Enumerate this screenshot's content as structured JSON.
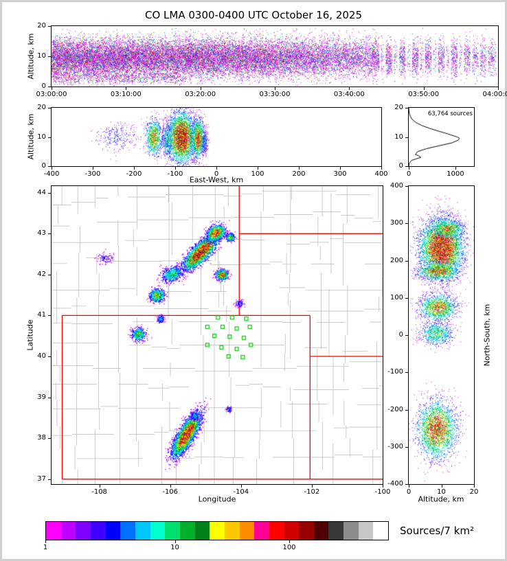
{
  "title": "CO LMA 0300-0400 UTC October 16, 2025",
  "panels": {
    "time_height": {
      "ylabel": "Altitude, km",
      "yticks": [
        0,
        10,
        20
      ],
      "xticks": [
        {
          "v": 0,
          "label": "03:00:00"
        },
        {
          "v": 600,
          "label": "03:10:00"
        },
        {
          "v": 1200,
          "label": "03:20:00"
        },
        {
          "v": 1800,
          "label": "03:30:00"
        },
        {
          "v": 2400,
          "label": "03:40:00"
        },
        {
          "v": 3000,
          "label": "03:50:00"
        },
        {
          "v": 3600,
          "label": "04:00:00"
        }
      ],
      "xrange": [
        0,
        3600
      ],
      "yrange": [
        0,
        20
      ]
    },
    "ew_height": {
      "xlabel": "East-West, km",
      "ylabel": "Altitude, km",
      "xticks": [
        -400,
        -300,
        -200,
        -100,
        0,
        100,
        200,
        300,
        400
      ],
      "yticks": [
        0,
        10,
        20
      ],
      "xrange": [
        -400,
        400
      ],
      "yrange": [
        0,
        20
      ]
    },
    "histogram": {
      "annotation": "63,764 sources",
      "xticks": [
        0,
        1000
      ],
      "yticks": [
        0,
        10,
        20
      ],
      "xrange": [
        0,
        1400
      ],
      "yrange": [
        0,
        20
      ]
    },
    "plan_view": {
      "xlabel": "Longitude",
      "ylabel": "Latitude",
      "xticks": [
        -108,
        -106,
        -104,
        -102,
        -100
      ],
      "yticks": [
        37,
        38,
        39,
        40,
        41,
        42,
        43,
        44
      ],
      "xrange": [
        -109.35,
        -100.0
      ],
      "yrange": [
        36.88,
        44.16
      ]
    },
    "ns_height": {
      "xlabel": "Altitude, km",
      "ylabel": "North-South, km",
      "xticks": [
        0,
        10,
        20
      ],
      "yticks": [
        -400,
        -300,
        -200,
        -100,
        0,
        100,
        200,
        300,
        400
      ],
      "xrange": [
        0,
        20
      ],
      "yrange": [
        -400,
        400
      ]
    },
    "colorbar": {
      "label": "Sources/7 km²",
      "ticks": [
        {
          "pos": 0.0,
          "label": "1"
        },
        {
          "pos": 0.377,
          "label": "10"
        },
        {
          "pos": 0.71,
          "label": "100"
        }
      ],
      "colors": [
        "#ff00ff",
        "#c000ff",
        "#8000ff",
        "#4000ff",
        "#0000ff",
        "#0070ff",
        "#00c8ff",
        "#00ffd0",
        "#00e070",
        "#00b028",
        "#008018",
        "#ffff00",
        "#ffc800",
        "#ff8c00",
        "#ff0096",
        "#ff0000",
        "#d00000",
        "#960000",
        "#500000",
        "#383838",
        "#8c8c8c",
        "#c8c8c8",
        "#ffffff"
      ]
    }
  },
  "chart_data": {
    "type": "scatter",
    "title": "CO LMA 0300-0400 UTC October 16, 2025",
    "total_sources": 63764,
    "colormap_label": "Sources/7 km²",
    "time_height": {
      "xlim": [
        0,
        3600
      ],
      "ylim": [
        0,
        20
      ],
      "alt_mean": 9.5,
      "alt_sd": 3.2,
      "low_alt": 3.0,
      "points_scale": 38000,
      "segments": [
        [
          0.0,
          0.08,
          1.0
        ],
        [
          0.08,
          0.16,
          1.0
        ],
        [
          0.16,
          0.24,
          0.95
        ],
        [
          0.24,
          0.32,
          0.9
        ],
        [
          0.32,
          0.4,
          0.85
        ],
        [
          0.4,
          0.47,
          0.8
        ],
        [
          0.47,
          0.55,
          0.7
        ],
        [
          0.55,
          0.62,
          0.6
        ],
        [
          0.62,
          0.68,
          0.5
        ],
        [
          0.68,
          0.72,
          0.45
        ],
        [
          0.72,
          0.733,
          0.55
        ],
        [
          0.737,
          0.744,
          0.2
        ],
        [
          0.748,
          0.762,
          0.5
        ],
        [
          0.766,
          0.773,
          0.18
        ],
        [
          0.778,
          0.792,
          0.45
        ],
        [
          0.796,
          0.803,
          0.15
        ],
        [
          0.807,
          0.821,
          0.5
        ],
        [
          0.825,
          0.832,
          0.2
        ],
        [
          0.836,
          0.85,
          0.45
        ],
        [
          0.854,
          0.861,
          0.15
        ],
        [
          0.865,
          0.879,
          0.4
        ],
        [
          0.883,
          0.89,
          0.15
        ],
        [
          0.894,
          0.908,
          0.45
        ],
        [
          0.912,
          0.919,
          0.15
        ],
        [
          0.923,
          0.937,
          0.35
        ],
        [
          0.941,
          0.955,
          0.25
        ],
        [
          0.959,
          0.973,
          0.3
        ],
        [
          0.977,
          0.995,
          0.25
        ]
      ]
    },
    "ew_height": {
      "xlim": [
        -400,
        400
      ],
      "ylim": [
        0,
        20
      ],
      "clusters": [
        {
          "cx": -240,
          "cy": 10,
          "sx": 28,
          "sy": 2.6,
          "rot": 0,
          "count": 260,
          "core": 0.28
        },
        {
          "cx": -152,
          "cy": 10,
          "sx": 10,
          "sy": 3.1,
          "rot": 0,
          "count": 850,
          "core": 0.78
        },
        {
          "cx": -120,
          "cy": 9,
          "sx": 7,
          "sy": 3.0,
          "rot": 0,
          "count": 420,
          "core": 0.55
        },
        {
          "cx": -85,
          "cy": 10,
          "sx": 16,
          "sy": 4.2,
          "rot": 0,
          "count": 3400,
          "core": 1.0
        },
        {
          "cx": -45,
          "cy": 9.5,
          "sx": 8,
          "sy": 3.4,
          "rot": 0,
          "count": 1200,
          "core": 0.85
        },
        {
          "cx": -28,
          "cy": 8,
          "sx": 4,
          "sy": 2.2,
          "rot": 0,
          "count": 180,
          "core": 0.35
        }
      ]
    },
    "plan_view": {
      "xlim": [
        -109.35,
        -100.0
      ],
      "ylim": [
        36.88,
        44.16
      ],
      "clusters": [
        {
          "cx": -105.15,
          "cy": 42.55,
          "sx": 0.3,
          "sy": 0.1,
          "rot": 40,
          "count": 2600,
          "core": 1.0
        },
        {
          "cx": -104.72,
          "cy": 43.02,
          "sx": 0.13,
          "sy": 0.09,
          "rot": 25,
          "count": 900,
          "core": 0.92
        },
        {
          "cx": -104.32,
          "cy": 42.92,
          "sx": 0.06,
          "sy": 0.05,
          "rot": 0,
          "count": 260,
          "core": 0.65
        },
        {
          "cx": -105.95,
          "cy": 42.02,
          "sx": 0.16,
          "sy": 0.09,
          "rot": 15,
          "count": 480,
          "core": 0.55
        },
        {
          "cx": -104.55,
          "cy": 42.0,
          "sx": 0.08,
          "sy": 0.06,
          "rot": 0,
          "count": 520,
          "core": 0.88
        },
        {
          "cx": -106.38,
          "cy": 41.5,
          "sx": 0.1,
          "sy": 0.08,
          "rot": 0,
          "count": 460,
          "core": 0.72
        },
        {
          "cx": -106.9,
          "cy": 40.55,
          "sx": 0.1,
          "sy": 0.08,
          "rot": 0,
          "count": 360,
          "core": 0.62
        },
        {
          "cx": -106.28,
          "cy": 40.92,
          "sx": 0.05,
          "sy": 0.05,
          "rot": 0,
          "count": 130,
          "core": 0.4
        },
        {
          "cx": -105.55,
          "cy": 38.1,
          "sx": 0.3,
          "sy": 0.1,
          "rot": 55,
          "count": 3200,
          "core": 0.97
        },
        {
          "cx": -105.32,
          "cy": 38.55,
          "sx": 0.06,
          "sy": 0.05,
          "rot": 0,
          "count": 160,
          "core": 0.45
        },
        {
          "cx": -104.35,
          "cy": 38.72,
          "sx": 0.04,
          "sy": 0.04,
          "rot": 0,
          "count": 60,
          "core": 0.35
        },
        {
          "cx": -104.05,
          "cy": 41.3,
          "sx": 0.06,
          "sy": 0.05,
          "rot": 0,
          "count": 70,
          "core": 0.3
        },
        {
          "cx": -107.85,
          "cy": 42.4,
          "sx": 0.12,
          "sy": 0.07,
          "rot": 0,
          "count": 80,
          "core": 0.25
        }
      ],
      "stations": [
        [
          -104.65,
          40.95
        ],
        [
          -104.25,
          40.95
        ],
        [
          -103.85,
          40.92
        ],
        [
          -104.95,
          40.72
        ],
        [
          -104.52,
          40.72
        ],
        [
          -104.12,
          40.68
        ],
        [
          -103.75,
          40.72
        ],
        [
          -104.75,
          40.5
        ],
        [
          -104.32,
          40.48
        ],
        [
          -103.92,
          40.45
        ],
        [
          -104.95,
          40.28
        ],
        [
          -104.55,
          40.22
        ],
        [
          -104.12,
          40.18
        ],
        [
          -103.72,
          40.28
        ],
        [
          -104.35,
          40.0
        ],
        [
          -103.95,
          39.98
        ]
      ],
      "state_borders": [
        [
          [
            -109.05,
            37.0
          ],
          [
            -109.05,
            41.0
          ]
        ],
        [
          [
            -109.05,
            41.0
          ],
          [
            -102.05,
            41.0
          ]
        ],
        [
          [
            -102.05,
            41.0
          ],
          [
            -102.05,
            37.0
          ]
        ],
        [
          [
            -109.05,
            37.0
          ],
          [
            -100.0,
            37.0
          ]
        ],
        [
          [
            -104.05,
            41.0
          ],
          [
            -104.05,
            44.16
          ]
        ],
        [
          [
            -104.05,
            43.0
          ],
          [
            -100.0,
            43.0
          ]
        ],
        [
          [
            -102.05,
            40.0
          ],
          [
            -100.0,
            40.0
          ]
        ]
      ]
    },
    "ns_height": {
      "xlim": [
        0,
        20
      ],
      "ylim": [
        -400,
        400
      ],
      "clusters": [
        {
          "cx": 10,
          "cy": 235,
          "sx": 3.2,
          "sy": 40,
          "rot": 0,
          "count": 5200,
          "core": 1.0
        },
        {
          "cx": 12,
          "cy": 286,
          "sx": 2.4,
          "sy": 12,
          "rot": 0,
          "count": 700,
          "core": 0.8
        },
        {
          "cx": 9,
          "cy": 172,
          "sx": 3.0,
          "sy": 12,
          "rot": 0,
          "count": 900,
          "core": 0.9
        },
        {
          "cx": 9,
          "cy": 75,
          "sx": 2.8,
          "sy": 18,
          "rot": 0,
          "count": 1300,
          "core": 0.8
        },
        {
          "cx": 8.5,
          "cy": 5,
          "sx": 2.6,
          "sy": 16,
          "rot": 0,
          "count": 700,
          "core": 0.6
        },
        {
          "cx": 8.5,
          "cy": -252,
          "sx": 3.0,
          "sy": 38,
          "rot": 0,
          "count": 2600,
          "core": 0.88
        }
      ]
    },
    "altitude_histogram": {
      "xlim": [
        0,
        1400
      ],
      "annotation": "63,764 sources",
      "profile": [
        [
          0,
          0
        ],
        [
          1,
          10
        ],
        [
          2,
          60
        ],
        [
          3,
          260
        ],
        [
          3.6,
          210
        ],
        [
          4,
          140
        ],
        [
          5,
          190
        ],
        [
          6,
          380
        ],
        [
          7,
          650
        ],
        [
          8,
          930
        ],
        [
          9,
          1070
        ],
        [
          9.6,
          1085
        ],
        [
          10,
          1040
        ],
        [
          11,
          850
        ],
        [
          12,
          640
        ],
        [
          13,
          440
        ],
        [
          14,
          270
        ],
        [
          15,
          150
        ],
        [
          16,
          75
        ],
        [
          17,
          35
        ],
        [
          18,
          14
        ],
        [
          19,
          5
        ],
        [
          20,
          0
        ]
      ]
    }
  }
}
